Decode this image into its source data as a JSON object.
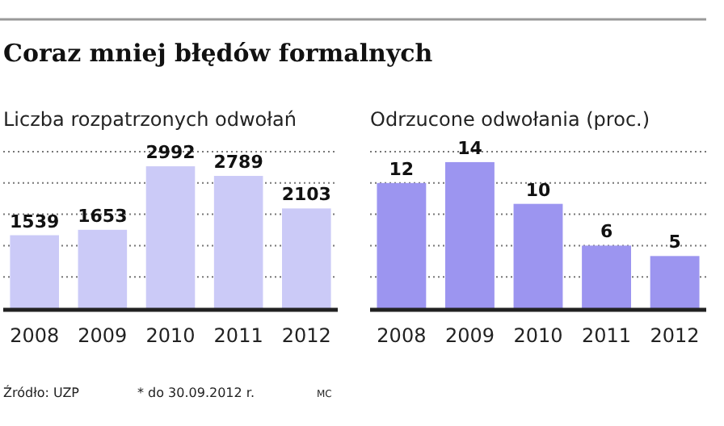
{
  "chart_data": [
    {
      "type": "bar",
      "title": "Coraz mniej błędów formalnych",
      "subtitle": "Liczba rozpatrzonych odwołań",
      "categories": [
        "2008",
        "2009",
        "2010",
        "2011",
        "2012"
      ],
      "values": [
        1539,
        1653,
        2992,
        2789,
        2103
      ],
      "color": "#cbcaf7",
      "ylim": [
        0,
        3300
      ],
      "yticks": [
        {
          "value": 660,
          "label": null
        },
        {
          "value": 1320,
          "label": null
        },
        {
          "value": 1980,
          "label": null
        },
        {
          "value": 2640,
          "label": null
        },
        {
          "value": 3300,
          "label": null
        }
      ],
      "tick_labels": "x",
      "grid": "y",
      "data_labels": true,
      "annotations": [
        "Źródło: UZP",
        "* do 30.09.2012 r.",
        "MC"
      ]
    },
    {
      "type": "bar",
      "subtitle": "Odrzucone odwołania (proc.)",
      "categories": [
        "2008",
        "2009",
        "2010",
        "2011",
        "2012"
      ],
      "values": [
        12,
        14,
        10,
        6,
        5
      ],
      "color": "#9c95f0",
      "ylim": [
        0,
        15
      ],
      "yticks": [
        {
          "value": 3,
          "label": null
        },
        {
          "value": 6,
          "label": null
        },
        {
          "value": 9,
          "label": null
        },
        {
          "value": 12,
          "label": null
        },
        {
          "value": 15,
          "label": null
        }
      ],
      "tick_labels": "x",
      "grid": "y",
      "data_labels": true
    }
  ]
}
